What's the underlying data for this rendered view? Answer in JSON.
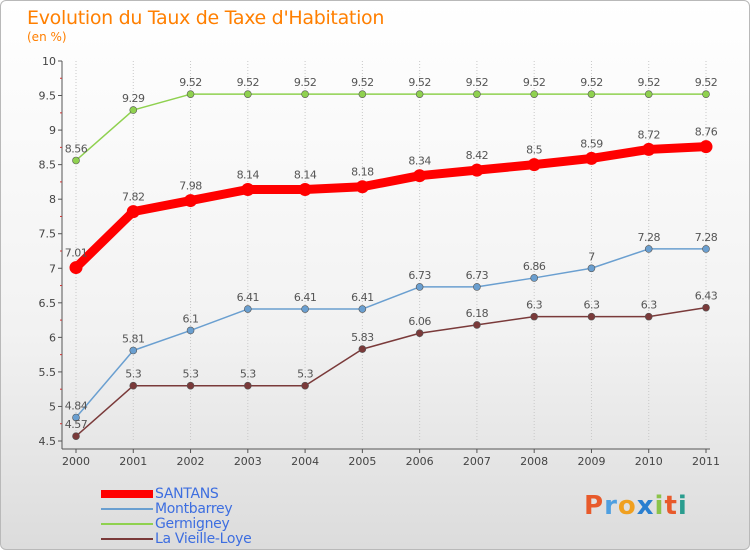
{
  "title": "Evolution du Taux de Taxe d'Habitation",
  "unit_label": "(en %)",
  "logo": {
    "text": "Proxiti",
    "letters": [
      {
        "ch": "P",
        "color": "#e85a2b"
      },
      {
        "ch": "r",
        "color": "#4f9fe0"
      },
      {
        "ch": "o",
        "color": "#f0a020"
      },
      {
        "ch": "x",
        "color": "#2a7fd0"
      },
      {
        "ch": "i",
        "color": "#8bc34a"
      },
      {
        "ch": "t",
        "color": "#e85a2b"
      },
      {
        "ch": "i",
        "color": "#2a9d8f"
      }
    ]
  },
  "chart_data": {
    "type": "line",
    "x": [
      "2000",
      "2001",
      "2002",
      "2003",
      "2004",
      "2005",
      "2006",
      "2007",
      "2008",
      "2009",
      "2010",
      "2011"
    ],
    "ylim": [
      4.5,
      10
    ],
    "yticks": [
      "4.5",
      "5",
      "5.5",
      "6",
      "6.5",
      "7",
      "7.5",
      "8",
      "8.5",
      "9",
      "9.5",
      "10"
    ],
    "grid": "vertical dotted",
    "series": [
      {
        "name": "SANTANS",
        "color": "#ff0000",
        "values": [
          7.01,
          7.82,
          7.98,
          8.14,
          8.14,
          8.18,
          8.34,
          8.42,
          8.5,
          8.59,
          8.72,
          8.76
        ],
        "labels": [
          "7.01",
          "7.82",
          "7.98",
          "8.14",
          "8.14",
          "8.18",
          "8.34",
          "8.42",
          "8.5",
          "8.59",
          "8.72",
          "8.76"
        ]
      },
      {
        "name": "Montbarrey",
        "color": "#6a9fd0",
        "values": [
          4.84,
          5.81,
          6.1,
          6.41,
          6.41,
          6.41,
          6.73,
          6.73,
          6.86,
          7,
          7.28,
          7.28
        ],
        "labels": [
          "4.84",
          "5.81",
          "6.1",
          "6.41",
          "6.41",
          "6.41",
          "6.73",
          "6.73",
          "6.86",
          "7",
          "7.28",
          "7.28"
        ]
      },
      {
        "name": "Germigney",
        "color": "#8fd14f",
        "values": [
          8.56,
          9.29,
          9.52,
          9.52,
          9.52,
          9.52,
          9.52,
          9.52,
          9.52,
          9.52,
          9.52,
          9.52
        ],
        "labels": [
          "8.56",
          "9.29",
          "9.52",
          "9.52",
          "9.52",
          "9.52",
          "9.52",
          "9.52",
          "9.52",
          "9.52",
          "9.52",
          "9.52"
        ]
      },
      {
        "name": "La Vieille-Loye",
        "color": "#7a3a3a",
        "values": [
          4.57,
          5.3,
          5.3,
          5.3,
          5.3,
          5.83,
          6.06,
          6.18,
          6.3,
          6.3,
          6.3,
          6.43
        ],
        "labels": [
          "4.57",
          "5.3",
          "5.3",
          "5.3",
          "5.3",
          "5.83",
          "6.06",
          "6.18",
          "6.3",
          "6.3",
          "6.3",
          "6.43"
        ]
      }
    ]
  }
}
